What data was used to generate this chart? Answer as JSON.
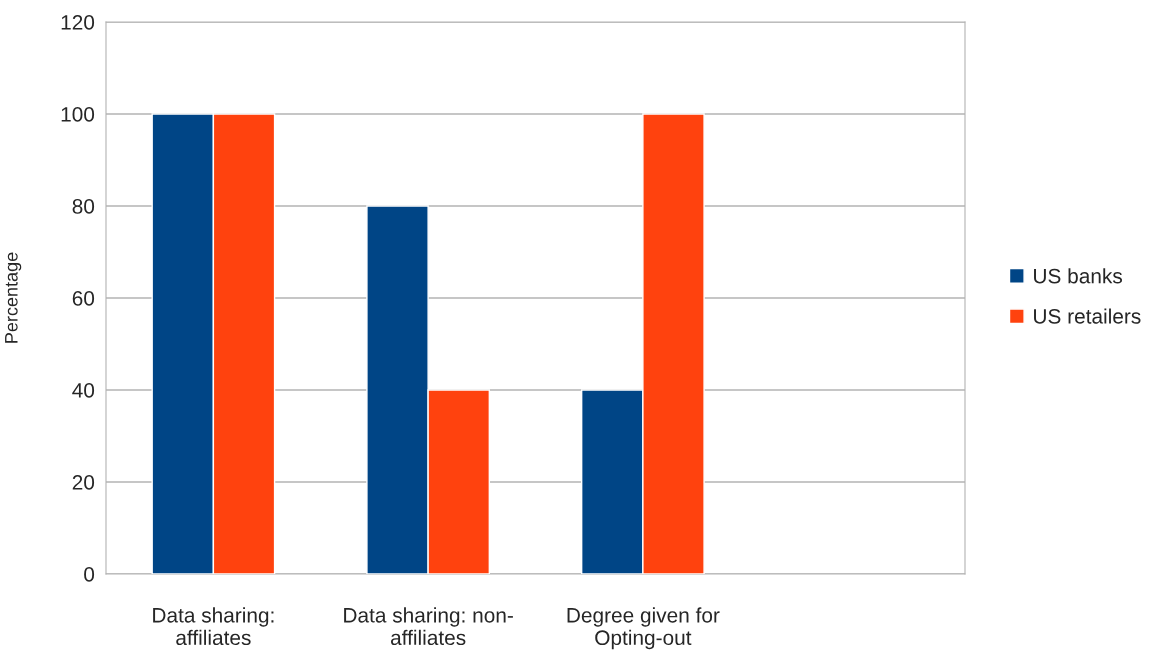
{
  "chart_data": {
    "type": "bar",
    "ylabel": "Percentage",
    "categories": [
      "Data sharing:\naffiliates",
      "Data sharing: non-\naffiliates",
      "Degree given for\nOpting-out",
      null
    ],
    "series": [
      {
        "name": "US banks",
        "color": "#004586",
        "values": [
          100,
          80,
          40,
          null
        ]
      },
      {
        "name": "US retailers",
        "color": "#ff420e",
        "values": [
          100,
          40,
          100,
          null
        ]
      }
    ],
    "ylim": [
      0,
      120
    ],
    "yticks": [
      0,
      20,
      40,
      60,
      80,
      100,
      120
    ],
    "grid": "y",
    "legend": "right"
  }
}
